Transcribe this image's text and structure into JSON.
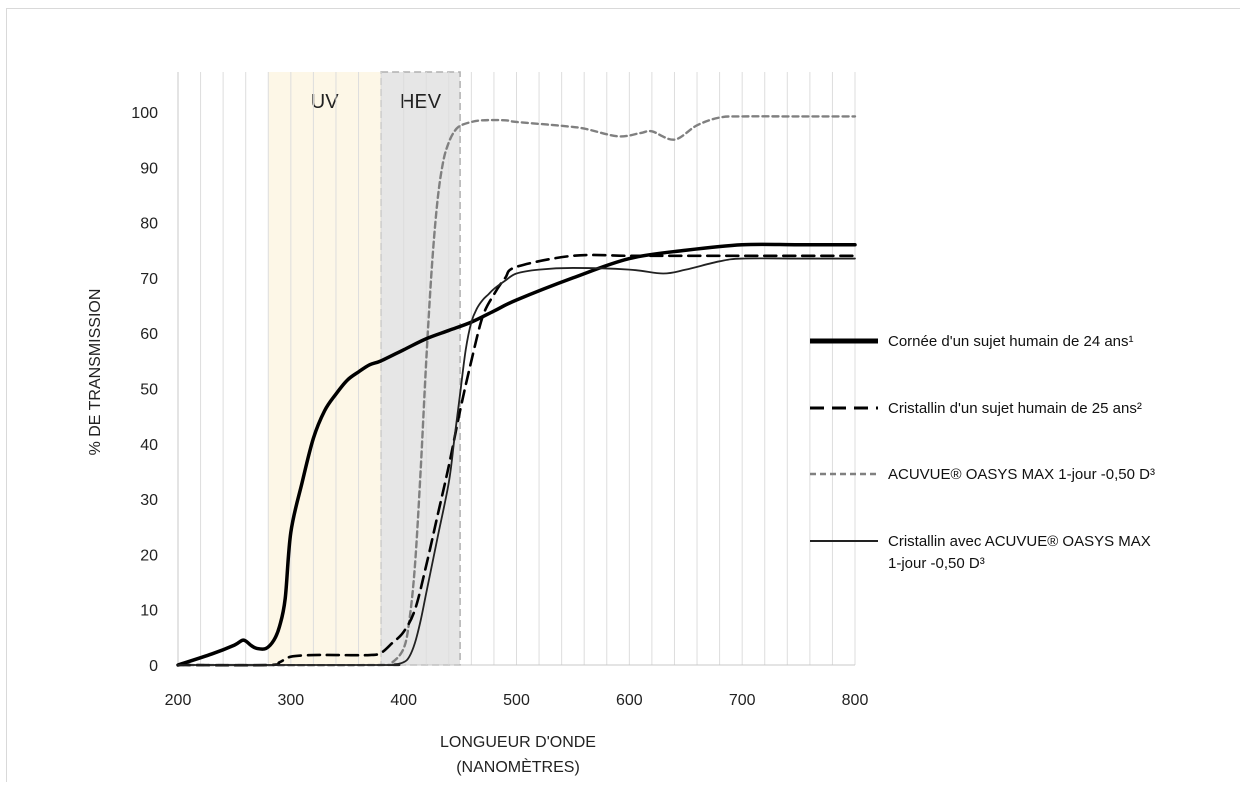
{
  "chart_data": {
    "type": "line",
    "xlabel_lines": [
      "LONGUEUR D'ONDE",
      "(NANOMÈTRES)"
    ],
    "ylabel": "% DE TRANSMISSION",
    "xlim": [
      200,
      800
    ],
    "ylim": [
      0,
      100
    ],
    "xticks": [
      200,
      300,
      400,
      500,
      600,
      700,
      800
    ],
    "yticks": [
      0,
      10,
      20,
      30,
      40,
      50,
      60,
      70,
      80,
      90,
      100
    ],
    "grid": "vertical",
    "legend_position": "right",
    "bands": [
      {
        "label": "UV",
        "from": 280,
        "to": 380,
        "color": "#fdf7e7"
      },
      {
        "label": "HEV",
        "from": 380,
        "to": 450,
        "color": "#e6e6e6"
      }
    ],
    "series": [
      {
        "name": "Cornée d'un sujet humain de 24 ans¹",
        "style": "thick",
        "color": "#000000",
        "x": [
          200,
          230,
          250,
          258,
          265,
          270,
          278,
          285,
          290,
          295,
          300,
          310,
          320,
          330,
          340,
          350,
          360,
          370,
          380,
          400,
          420,
          440,
          460,
          480,
          500,
          550,
          600,
          650,
          700,
          750,
          800
        ],
        "y": [
          0,
          2,
          3.6,
          4.5,
          3.5,
          3,
          3,
          4.5,
          7,
          12,
          24,
          33,
          41,
          46,
          49,
          51.5,
          53,
          54.3,
          55,
          57,
          59,
          60.5,
          62,
          64,
          66,
          70,
          73.5,
          75,
          76,
          76,
          76
        ]
      },
      {
        "name": "Cristallin d'un sujet humain de 25 ans²",
        "style": "dashed",
        "color": "#000000",
        "x": [
          200,
          280,
          290,
          300,
          320,
          340,
          370,
          380,
          390,
          400,
          410,
          420,
          430,
          440,
          450,
          460,
          470,
          480,
          490,
          500,
          550,
          600,
          650,
          700,
          750,
          800
        ],
        "y": [
          0,
          0,
          0.5,
          1.5,
          1.8,
          1.8,
          1.8,
          2.2,
          4,
          6,
          10,
          18,
          27,
          36,
          46,
          55,
          63,
          67,
          70,
          72,
          74,
          74,
          74,
          74,
          74,
          74
        ]
      },
      {
        "name": "ACUVUE® OASYS MAX 1-jour -0,50 D³",
        "style": "dotted-gray",
        "color": "#808080",
        "x": [
          200,
          380,
          390,
          400,
          405,
          410,
          415,
          420,
          425,
          430,
          435,
          440,
          445,
          450,
          460,
          470,
          490,
          500,
          540,
          560,
          590,
          610,
          620,
          640,
          660,
          680,
          700,
          750,
          800
        ],
        "y": [
          0,
          0,
          0.5,
          3,
          8,
          18,
          35,
          55,
          72,
          84,
          91,
          94.5,
          96.5,
          97.5,
          98.2,
          98.5,
          98.5,
          98.2,
          97.5,
          97,
          95.6,
          96.2,
          96.5,
          95,
          97.6,
          99,
          99.2,
          99.2,
          99.2
        ]
      },
      {
        "name": "Cristallin avec ACUVUE® OASYS MAX 1-jour  -0,50 D³",
        "style": "thin",
        "color": "#222222",
        "x": [
          200,
          380,
          390,
          400,
          405,
          410,
          415,
          420,
          430,
          440,
          445,
          450,
          455,
          460,
          465,
          470,
          475,
          480,
          490,
          500,
          520,
          550,
          600,
          630,
          650,
          680,
          700,
          750,
          800
        ],
        "y": [
          0,
          0,
          0,
          0.5,
          1.5,
          4,
          8,
          13,
          23,
          33,
          41,
          49,
          57,
          62,
          64.5,
          66,
          67,
          68,
          69.5,
          70.8,
          71.5,
          71.8,
          71.5,
          70.8,
          71.5,
          73,
          73.5,
          73.5,
          73.5
        ]
      }
    ]
  },
  "legend": [
    {
      "label": "Cornée d'un sujet humain de 24 ans¹"
    },
    {
      "label": "Cristallin d'un sujet humain de 25 ans²"
    },
    {
      "label": "ACUVUE® OASYS MAX 1-jour -0,50 D³"
    },
    {
      "label_line1": "Cristallin avec ACUVUE® OASYS MAX",
      "label_line2": "1-jour  -0,50 D³"
    }
  ]
}
